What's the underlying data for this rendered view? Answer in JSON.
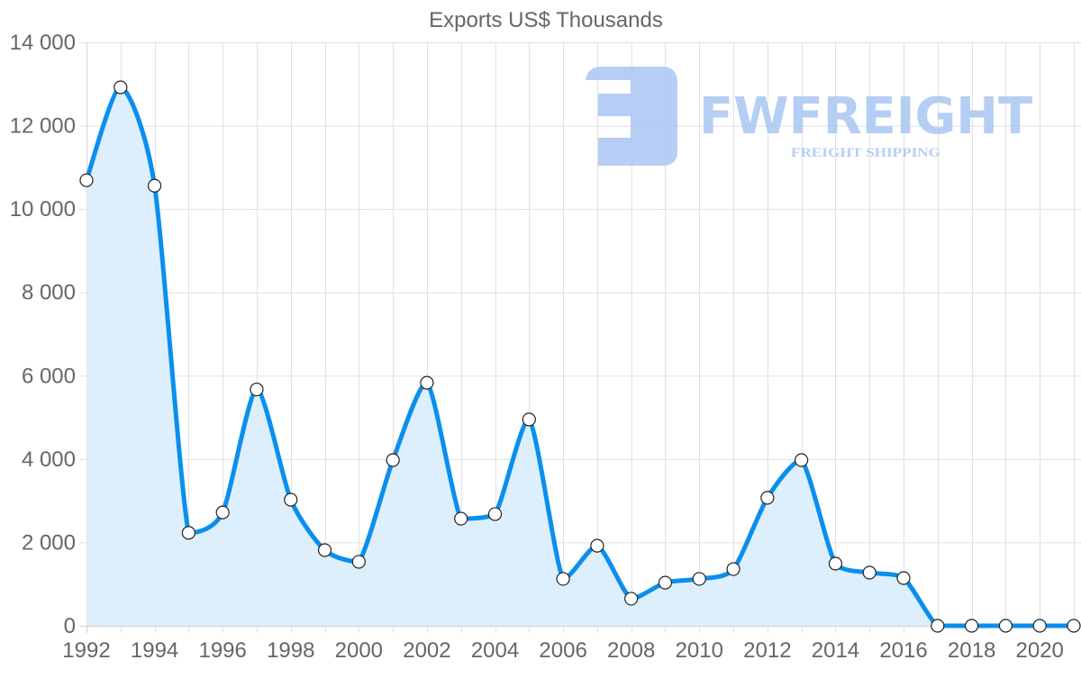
{
  "chart_data": {
    "type": "line",
    "title": "Exports US$ Thousands",
    "xlabel": "",
    "ylabel": "",
    "x": [
      1992,
      1993,
      1994,
      1995,
      1996,
      1997,
      1998,
      1999,
      2000,
      2001,
      2002,
      2003,
      2004,
      2005,
      2006,
      2007,
      2008,
      2009,
      2010,
      2011,
      2012,
      2013,
      2014,
      2015,
      2016,
      2017,
      2018,
      2019,
      2020,
      2021
    ],
    "series": [
      {
        "name": "Exports US$ Thousands",
        "values": [
          10690,
          12920,
          10560,
          2230,
          2720,
          5670,
          3025,
          1815,
          1535,
          3975,
          5830,
          2570,
          2680,
          4950,
          1125,
          1920,
          650,
          1035,
          1125,
          1360,
          3070,
          3975,
          1490,
          1275,
          1145,
          0,
          0,
          0,
          0,
          0
        ],
        "line_color": "#0a8fee",
        "fill_color": "#d9ecfc",
        "point_fill": "#ffffff",
        "point_stroke": "#222222"
      }
    ],
    "x_tick_labels": [
      "1992",
      "1994",
      "1996",
      "1998",
      "2000",
      "2002",
      "2004",
      "2006",
      "2008",
      "2010",
      "2012",
      "2014",
      "2016",
      "2018",
      "2020"
    ],
    "y_tick_labels": [
      "0",
      "2 000",
      "4 000",
      "6 000",
      "8 000",
      "10 000",
      "12 000",
      "14 000"
    ],
    "y_ticks": [
      0,
      2000,
      4000,
      6000,
      8000,
      10000,
      12000,
      14000
    ],
    "ylim": [
      0,
      14000
    ],
    "xlim": [
      1992,
      2021
    ],
    "grid": true,
    "legend": "none"
  },
  "watermark": {
    "brand": "FWFREIGHT",
    "tagline": "FREIGHT SHIPPING",
    "color": "#a9c6f3"
  }
}
